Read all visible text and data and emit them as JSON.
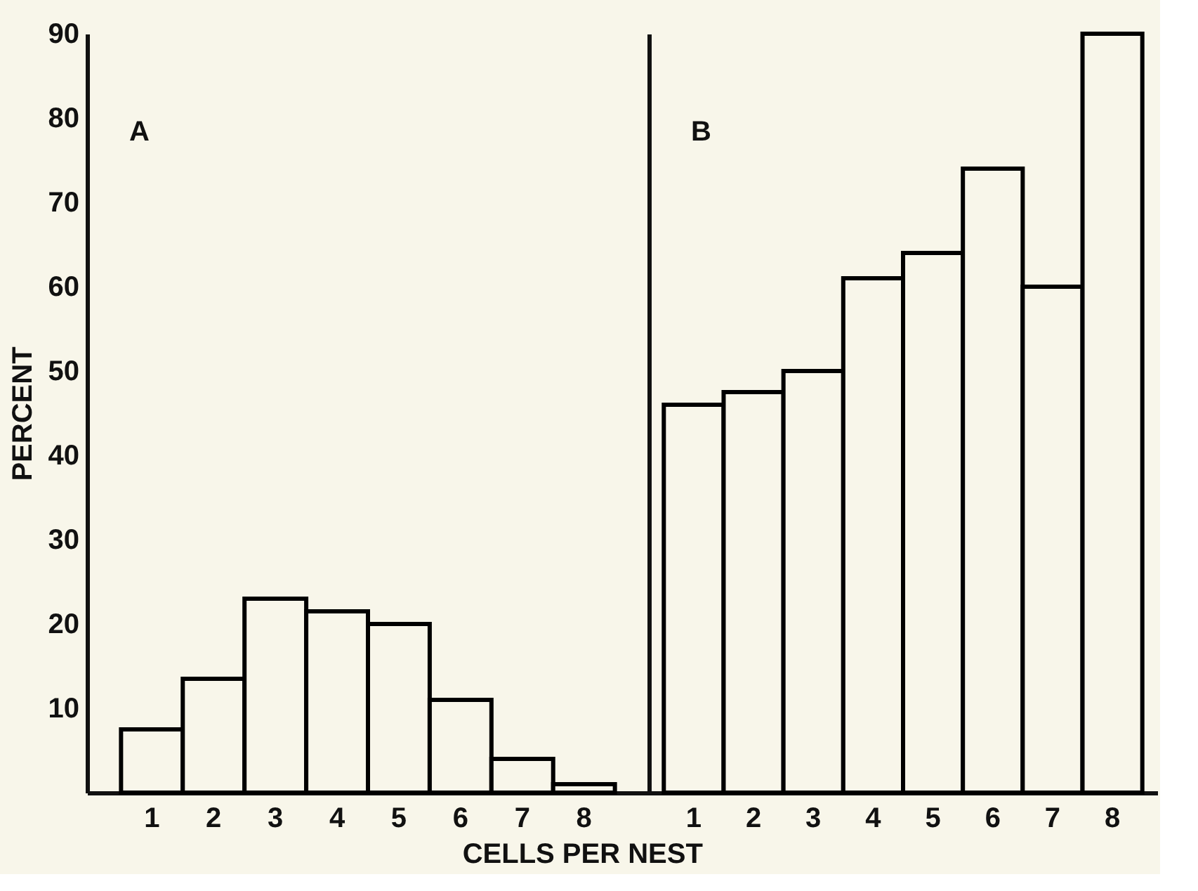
{
  "chart_data": [
    {
      "type": "bar",
      "categories": [
        "1",
        "2",
        "3",
        "4",
        "5",
        "6",
        "7",
        "8"
      ],
      "values": [
        7.5,
        13.5,
        23,
        21.5,
        20,
        11,
        4,
        1
      ],
      "color": "#000000",
      "ylim": [
        0,
        90
      ],
      "yticks": [
        10,
        20,
        30,
        40,
        50,
        60,
        70,
        80,
        90
      ],
      "ylabel": "PERCENT",
      "xlabel": "CELLS PER NEST",
      "annotations": [
        "A"
      ],
      "grid": false
    },
    {
      "type": "bar",
      "categories": [
        "1",
        "2",
        "3",
        "4",
        "5",
        "6",
        "7",
        "8"
      ],
      "values": [
        46,
        47.5,
        50,
        61,
        64,
        74,
        60,
        90
      ],
      "color": "#000000",
      "ylim": [
        0,
        90
      ],
      "yticks": [
        10,
        20,
        30,
        40,
        50,
        60,
        70,
        80,
        90
      ],
      "annotations": [
        "B"
      ],
      "grid": false,
      "tick_labels": "x"
    }
  ]
}
